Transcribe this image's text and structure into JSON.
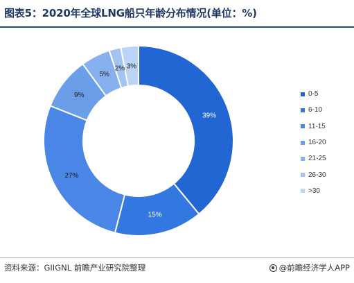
{
  "title": "图表5：2020年全球LNG船只年龄分布情况(单位：%)",
  "source": "资料来源：GIIGNL 前瞻产业研究院整理",
  "brand": "@前瞻经济学人APP",
  "colors": [
    "#2266d3",
    "#3377e0",
    "#4a86e6",
    "#6a9ee8",
    "#86b0ee",
    "#a3c4f2",
    "#bcd5f6"
  ],
  "chart_data": {
    "type": "pie",
    "donut": true,
    "categories": [
      "0-5",
      "6-10",
      "11-15",
      "16-20",
      "21-25",
      "26-30",
      ">30"
    ],
    "values": [
      39,
      15,
      27,
      9,
      5,
      2,
      3
    ],
    "data_labels": [
      "39%",
      "15%",
      "27%",
      "9%",
      "5%",
      "2%",
      "3%"
    ],
    "legend_position": "right"
  }
}
